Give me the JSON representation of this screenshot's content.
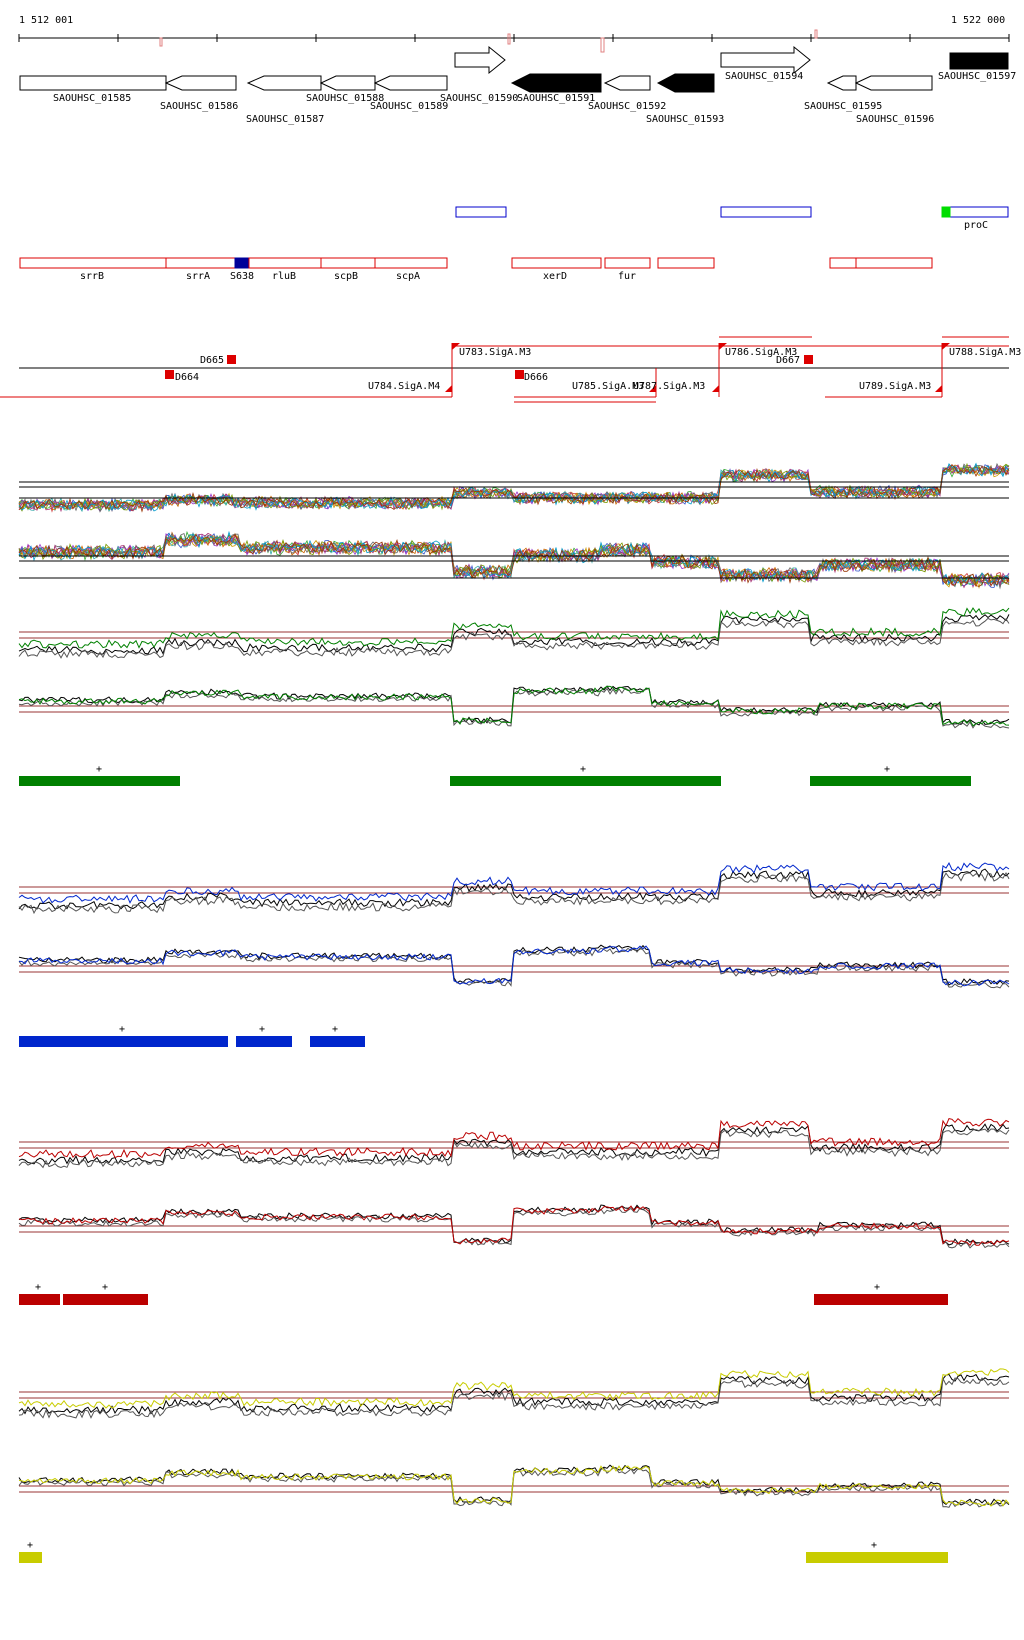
{
  "coords": {
    "start_label": "1 512 001",
    "end_label": "1 522 000"
  },
  "genes": [
    {
      "label": "SAOUHSC_01585"
    },
    {
      "label": "SAOUHSC_01586"
    },
    {
      "label": "SAOUHSC_01587"
    },
    {
      "label": "SAOUHSC_01588"
    },
    {
      "label": "SAOUHSC_01589"
    },
    {
      "label": "SAOUHSC_01590"
    },
    {
      "label": "SAOUHSC_01591"
    },
    {
      "label": "SAOUHSC_01592"
    },
    {
      "label": "SAOUHSC_01593"
    },
    {
      "label": "SAOUHSC_01594"
    },
    {
      "label": "SAOUHSC_01595"
    },
    {
      "label": "SAOUHSC_01596"
    },
    {
      "label": "SAOUHSC_01597"
    }
  ],
  "blue_features": [
    {
      "label": ""
    },
    {
      "label": ""
    },
    {
      "label": "proC"
    }
  ],
  "red_features": [
    {
      "label": "srrB"
    },
    {
      "label": "srrA"
    },
    {
      "label": "S638"
    },
    {
      "label": "rluB"
    },
    {
      "label": "scpB"
    },
    {
      "label": "scpA"
    },
    {
      "label": "xerD"
    },
    {
      "label": "fur"
    },
    {
      "label": ""
    },
    {
      "label": ""
    }
  ],
  "promoters": [
    {
      "label": "U783.SigA.M3"
    },
    {
      "label": "U784.SigA.M4"
    },
    {
      "label": "U785.SigA.M3"
    },
    {
      "label": "U786.SigA.M3"
    },
    {
      "label": "U787.SigA.M3"
    },
    {
      "label": "U788.SigA.M3"
    },
    {
      "label": "U789.SigA.M3"
    }
  ],
  "terminators": [
    {
      "label": "D664"
    },
    {
      "label": "D665"
    },
    {
      "label": "D666"
    },
    {
      "label": "D667"
    }
  ],
  "panels": [
    {
      "color": "#008000",
      "segments": [
        {
          "label": "+"
        },
        {
          "label": "+"
        },
        {
          "label": "+"
        }
      ]
    },
    {
      "color": "#0026cc",
      "segments": [
        {
          "label": "+"
        },
        {
          "label": "+"
        },
        {
          "label": "+"
        }
      ]
    },
    {
      "color": "#bb0000",
      "segments": [
        {
          "label": "+"
        },
        {
          "label": "+"
        },
        {
          "label": "+"
        }
      ]
    },
    {
      "color": "#c8cc00",
      "segments": [
        {
          "label": "+"
        },
        {
          "label": "+"
        }
      ]
    }
  ],
  "colors": {
    "gene_outline": "#000000",
    "feature_red": "#dd0000",
    "feature_blue": "#0000cc",
    "feature_green": "#00dd00",
    "threshold": "#993333"
  }
}
